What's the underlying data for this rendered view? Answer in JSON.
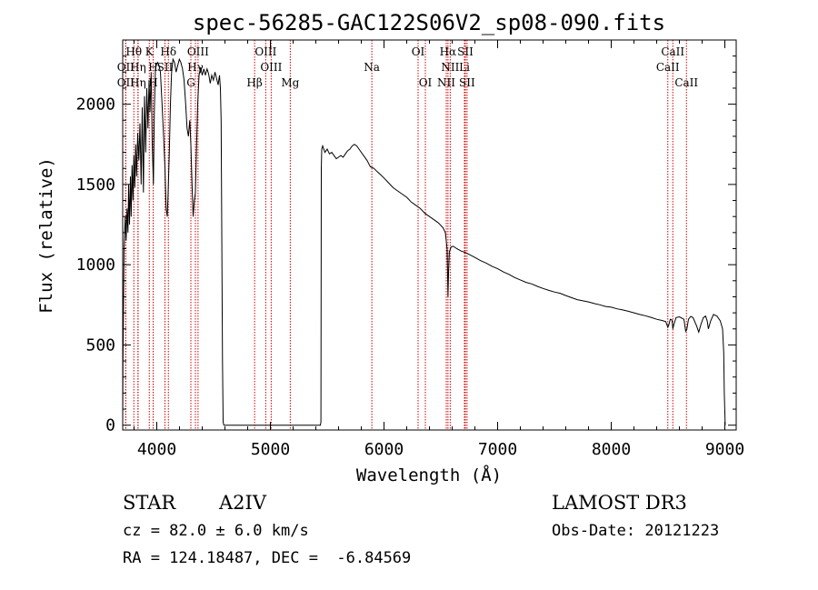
{
  "chart_data": {
    "type": "line",
    "title": "spec-56285-GAC122S06V2_sp08-090.fits",
    "xlabel": "Wavelength (Å)",
    "ylabel": "Flux (relative)",
    "xlim": [
      3700,
      9100
    ],
    "ylim": [
      -30,
      2400
    ],
    "x_ticks": [
      4000,
      5000,
      6000,
      7000,
      8000,
      9000
    ],
    "y_ticks": [
      0,
      500,
      1000,
      1500,
      2000
    ],
    "series": [
      {
        "name": "spectrum",
        "points": [
          [
            3700,
            0
          ],
          [
            3702,
            400
          ],
          [
            3712,
            1100
          ],
          [
            3722,
            1300
          ],
          [
            3730,
            1150
          ],
          [
            3738,
            1350
          ],
          [
            3746,
            1200
          ],
          [
            3752,
            1500
          ],
          [
            3760,
            1250
          ],
          [
            3768,
            1550
          ],
          [
            3774,
            1300
          ],
          [
            3782,
            1620
          ],
          [
            3790,
            1400
          ],
          [
            3798,
            1680
          ],
          [
            3806,
            1480
          ],
          [
            3814,
            1750
          ],
          [
            3822,
            1550
          ],
          [
            3832,
            1820
          ],
          [
            3842,
            1650
          ],
          [
            3852,
            1880
          ],
          [
            3862,
            1500
          ],
          [
            3872,
            1980
          ],
          [
            3882,
            1450
          ],
          [
            3892,
            2050
          ],
          [
            3902,
            1700
          ],
          [
            3912,
            2100
          ],
          [
            3922,
            1850
          ],
          [
            3932,
            2150
          ],
          [
            3940,
            1950
          ],
          [
            3950,
            2200
          ],
          [
            3960,
            1750
          ],
          [
            3970,
            1500
          ],
          [
            3978,
            1950
          ],
          [
            3988,
            2220
          ],
          [
            3998,
            2250
          ],
          [
            4008,
            2260
          ],
          [
            4020,
            2240
          ],
          [
            4032,
            2200
          ],
          [
            4046,
            2000
          ],
          [
            4060,
            1800
          ],
          [
            4072,
            1600
          ],
          [
            4082,
            1350
          ],
          [
            4092,
            1300
          ],
          [
            4100,
            1450
          ],
          [
            4110,
            1700
          ],
          [
            4120,
            2000
          ],
          [
            4130,
            2200
          ],
          [
            4142,
            2280
          ],
          [
            4156,
            2260
          ],
          [
            4170,
            2200
          ],
          [
            4184,
            2240
          ],
          [
            4198,
            2280
          ],
          [
            4212,
            2260
          ],
          [
            4226,
            2220
          ],
          [
            4240,
            2150
          ],
          [
            4254,
            2000
          ],
          [
            4266,
            1850
          ],
          [
            4278,
            1800
          ],
          [
            4290,
            1900
          ],
          [
            4300,
            1750
          ],
          [
            4310,
            1500
          ],
          [
            4320,
            1300
          ],
          [
            4330,
            1400
          ],
          [
            4340,
            1450
          ],
          [
            4350,
            1750
          ],
          [
            4360,
            2000
          ],
          [
            4372,
            2180
          ],
          [
            4386,
            2230
          ],
          [
            4400,
            2180
          ],
          [
            4414,
            2220
          ],
          [
            4428,
            2180
          ],
          [
            4442,
            2220
          ],
          [
            4456,
            2190
          ],
          [
            4470,
            2130
          ],
          [
            4484,
            2180
          ],
          [
            4498,
            2150
          ],
          [
            4512,
            2200
          ],
          [
            4526,
            2160
          ],
          [
            4540,
            2120
          ],
          [
            4552,
            2180
          ],
          [
            4560,
            2100
          ],
          [
            4566,
            1900
          ],
          [
            4572,
            1200
          ],
          [
            4578,
            400
          ],
          [
            4584,
            20
          ],
          [
            4590,
            0
          ],
          [
            5440,
            0
          ],
          [
            5445,
            20
          ],
          [
            5448,
            1600
          ],
          [
            5452,
            1720
          ],
          [
            5460,
            1740
          ],
          [
            5480,
            1700
          ],
          [
            5500,
            1720
          ],
          [
            5520,
            1690
          ],
          [
            5540,
            1700
          ],
          [
            5560,
            1680
          ],
          [
            5580,
            1660
          ],
          [
            5600,
            1670
          ],
          [
            5620,
            1680
          ],
          [
            5640,
            1670
          ],
          [
            5660,
            1690
          ],
          [
            5680,
            1710
          ],
          [
            5700,
            1720
          ],
          [
            5720,
            1740
          ],
          [
            5740,
            1750
          ],
          [
            5760,
            1740
          ],
          [
            5780,
            1720
          ],
          [
            5800,
            1700
          ],
          [
            5820,
            1680
          ],
          [
            5850,
            1650
          ],
          [
            5880,
            1610
          ],
          [
            5910,
            1600
          ],
          [
            5940,
            1580
          ],
          [
            5970,
            1560
          ],
          [
            6000,
            1540
          ],
          [
            6040,
            1510
          ],
          [
            6080,
            1480
          ],
          [
            6120,
            1460
          ],
          [
            6160,
            1440
          ],
          [
            6200,
            1420
          ],
          [
            6240,
            1390
          ],
          [
            6280,
            1370
          ],
          [
            6320,
            1350
          ],
          [
            6360,
            1320
          ],
          [
            6400,
            1300
          ],
          [
            6440,
            1280
          ],
          [
            6480,
            1260
          ],
          [
            6520,
            1230
          ],
          [
            6540,
            1200
          ],
          [
            6555,
            1100
          ],
          [
            6560,
            930
          ],
          [
            6563,
            800
          ],
          [
            6568,
            950
          ],
          [
            6575,
            1080
          ],
          [
            6590,
            1110
          ],
          [
            6610,
            1115
          ],
          [
            6640,
            1100
          ],
          [
            6680,
            1085
          ],
          [
            6720,
            1075
          ],
          [
            6760,
            1060
          ],
          [
            6800,
            1045
          ],
          [
            6850,
            1025
          ],
          [
            6900,
            1010
          ],
          [
            6950,
            990
          ],
          [
            7000,
            975
          ],
          [
            7050,
            955
          ],
          [
            7100,
            940
          ],
          [
            7150,
            920
          ],
          [
            7200,
            905
          ],
          [
            7250,
            890
          ],
          [
            7300,
            880
          ],
          [
            7350,
            865
          ],
          [
            7400,
            852
          ],
          [
            7450,
            840
          ],
          [
            7500,
            830
          ],
          [
            7550,
            822
          ],
          [
            7600,
            808
          ],
          [
            7650,
            795
          ],
          [
            7700,
            782
          ],
          [
            7750,
            775
          ],
          [
            7800,
            768
          ],
          [
            7850,
            758
          ],
          [
            7900,
            750
          ],
          [
            7950,
            740
          ],
          [
            8000,
            735
          ],
          [
            8050,
            725
          ],
          [
            8100,
            718
          ],
          [
            8150,
            710
          ],
          [
            8200,
            700
          ],
          [
            8250,
            690
          ],
          [
            8300,
            682
          ],
          [
            8350,
            672
          ],
          [
            8400,
            660
          ],
          [
            8450,
            652
          ],
          [
            8480,
            645
          ],
          [
            8498,
            610
          ],
          [
            8505,
            620
          ],
          [
            8520,
            660
          ],
          [
            8535,
            655
          ],
          [
            8542,
            600
          ],
          [
            8550,
            625
          ],
          [
            8570,
            670
          ],
          [
            8600,
            675
          ],
          [
            8640,
            660
          ],
          [
            8655,
            585
          ],
          [
            8665,
            595
          ],
          [
            8680,
            660
          ],
          [
            8700,
            678
          ],
          [
            8720,
            670
          ],
          [
            8750,
            620
          ],
          [
            8770,
            580
          ],
          [
            8790,
            630
          ],
          [
            8810,
            670
          ],
          [
            8830,
            680
          ],
          [
            8845,
            650
          ],
          [
            8855,
            600
          ],
          [
            8875,
            650
          ],
          [
            8900,
            690
          ],
          [
            8930,
            680
          ],
          [
            8960,
            650
          ],
          [
            8980,
            600
          ],
          [
            8990,
            450
          ],
          [
            8995,
            200
          ],
          [
            9000,
            80
          ],
          [
            9003,
            0
          ]
        ]
      }
    ],
    "spectral_lines": [
      {
        "label": "Hθ",
        "x": 3798,
        "row": 1
      },
      {
        "label": "K",
        "x": 3934,
        "row": 1
      },
      {
        "label": "Hδ",
        "x": 4102,
        "row": 1
      },
      {
        "label": "OIII",
        "x": 4363,
        "row": 1
      },
      {
        "label": "OIII",
        "x": 4959,
        "row": 1
      },
      {
        "label": "OI",
        "x": 6300,
        "row": 1
      },
      {
        "label": "Hα",
        "x": 6563,
        "row": 1
      },
      {
        "label": "SII",
        "x": 6716,
        "row": 1
      },
      {
        "label": "CaII",
        "x": 8542,
        "row": 1
      },
      {
        "label": "OII",
        "x": 3727,
        "row": 2
      },
      {
        "label": "Hη",
        "x": 3835,
        "row": 2
      },
      {
        "label": "H",
        "x": 3968,
        "row": 2
      },
      {
        "label": "SII",
        "x": 4072,
        "row": 2
      },
      {
        "label": "Hγ",
        "x": 4340,
        "row": 2
      },
      {
        "label": "OIII",
        "x": 5007,
        "row": 2
      },
      {
        "label": "Na",
        "x": 5893,
        "row": 2
      },
      {
        "label": "NII",
        "x": 6583,
        "row": 2
      },
      {
        "label": "Li",
        "x": 6708,
        "row": 2
      },
      {
        "label": "CaII",
        "x": 8498,
        "row": 2
      },
      {
        "label": "OII",
        "x": 3727,
        "row": 3
      },
      {
        "label": "Hη",
        "x": 3835,
        "row": 3
      },
      {
        "label": "H",
        "x": 3968,
        "row": 3
      },
      {
        "label": "G",
        "x": 4300,
        "row": 3
      },
      {
        "label": "Hβ",
        "x": 4861,
        "row": 3
      },
      {
        "label": "Mg",
        "x": 5175,
        "row": 3
      },
      {
        "label": "OI",
        "x": 6364,
        "row": 3
      },
      {
        "label": "NII",
        "x": 6548,
        "row": 3
      },
      {
        "label": "SII",
        "x": 6731,
        "row": 3
      },
      {
        "label": "CaII",
        "x": 8662,
        "row": 3
      }
    ],
    "line_color": "#000000",
    "marker_color": "#cc0000"
  },
  "info": {
    "object_class": "STAR",
    "subclass": "A2IV",
    "survey": "LAMOST DR3",
    "cz": "cz = 82.0 ± 6.0 km/s",
    "obs_date": "Obs-Date: 20121223",
    "coords": "RA = 124.18487, DEC =  -6.84569"
  }
}
